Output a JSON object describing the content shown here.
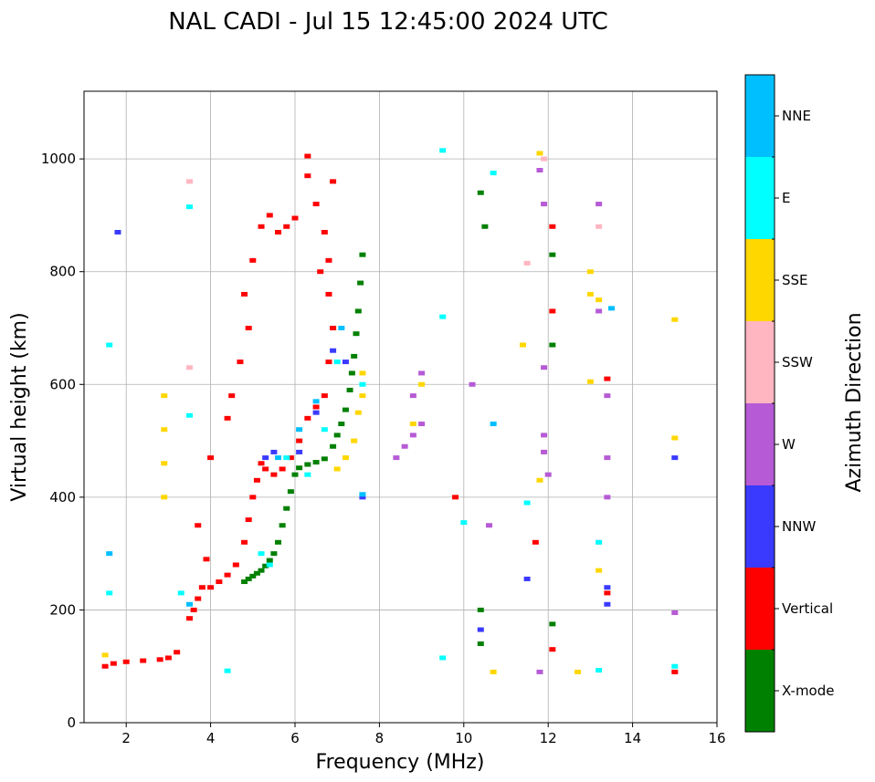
{
  "chart_data": {
    "type": "scatter",
    "title": "NAL CADI - Jul 15 12:45:00 2024 UTC",
    "xlabel": "Frequency (MHz)",
    "ylabel": "Virtual height (km)",
    "xlim": [
      1,
      16
    ],
    "ylim": [
      0,
      1120
    ],
    "xticks": [
      2,
      4,
      6,
      8,
      10,
      12,
      14,
      16
    ],
    "yticks": [
      0,
      200,
      400,
      600,
      800,
      1000
    ],
    "grid": true,
    "colorbar": {
      "title": "Azimuth Direction",
      "categories": [
        "X-mode",
        "Vertical",
        "NNW",
        "W",
        "SSW",
        "SSE",
        "E",
        "NNE"
      ],
      "colors": [
        "#008000",
        "#ff0000",
        "#3a3aff",
        "#b65ad6",
        "#ffb6c1",
        "#ffd700",
        "#00ffff",
        "#00bfff"
      ]
    },
    "series": [
      {
        "name": "X-mode",
        "points": [
          [
            4.8,
            250
          ],
          [
            4.9,
            255
          ],
          [
            5.0,
            260
          ],
          [
            5.1,
            265
          ],
          [
            5.2,
            270
          ],
          [
            5.3,
            278
          ],
          [
            5.4,
            288
          ],
          [
            5.5,
            300
          ],
          [
            5.6,
            320
          ],
          [
            5.7,
            350
          ],
          [
            5.8,
            380
          ],
          [
            5.9,
            410
          ],
          [
            6.0,
            440
          ],
          [
            6.1,
            452
          ],
          [
            6.3,
            458
          ],
          [
            6.5,
            462
          ],
          [
            6.7,
            468
          ],
          [
            6.9,
            490
          ],
          [
            7.0,
            510
          ],
          [
            7.1,
            530
          ],
          [
            7.2,
            555
          ],
          [
            7.3,
            590
          ],
          [
            7.35,
            620
          ],
          [
            7.4,
            650
          ],
          [
            7.45,
            690
          ],
          [
            7.5,
            730
          ],
          [
            7.55,
            780
          ],
          [
            7.6,
            830
          ],
          [
            10.4,
            200
          ],
          [
            10.4,
            140
          ],
          [
            10.5,
            880
          ],
          [
            12.1,
            175
          ],
          [
            12.1,
            670
          ],
          [
            12.1,
            830
          ],
          [
            10.4,
            940
          ]
        ]
      },
      {
        "name": "Vertical",
        "points": [
          [
            1.5,
            100
          ],
          [
            1.7,
            105
          ],
          [
            2.0,
            108
          ],
          [
            2.4,
            110
          ],
          [
            2.8,
            112
          ],
          [
            3.0,
            115
          ],
          [
            3.2,
            125
          ],
          [
            3.5,
            185
          ],
          [
            3.6,
            200
          ],
          [
            3.7,
            220
          ],
          [
            3.8,
            240
          ],
          [
            3.9,
            290
          ],
          [
            4.0,
            240
          ],
          [
            4.2,
            250
          ],
          [
            4.4,
            262
          ],
          [
            4.6,
            280
          ],
          [
            4.8,
            320
          ],
          [
            4.9,
            360
          ],
          [
            5.0,
            400
          ],
          [
            5.1,
            430
          ],
          [
            5.2,
            460
          ],
          [
            5.3,
            450
          ],
          [
            5.5,
            440
          ],
          [
            5.7,
            450
          ],
          [
            5.9,
            470
          ],
          [
            6.1,
            500
          ],
          [
            6.3,
            540
          ],
          [
            6.5,
            560
          ],
          [
            6.7,
            580
          ],
          [
            6.8,
            640
          ],
          [
            6.9,
            700
          ],
          [
            5.0,
            820
          ],
          [
            5.2,
            880
          ],
          [
            5.4,
            900
          ],
          [
            5.6,
            870
          ],
          [
            5.8,
            880
          ],
          [
            6.0,
            895
          ],
          [
            6.3,
            1005
          ],
          [
            6.3,
            970
          ],
          [
            6.5,
            920
          ],
          [
            6.7,
            870
          ],
          [
            6.9,
            960
          ],
          [
            4.9,
            700
          ],
          [
            4.8,
            760
          ],
          [
            4.7,
            640
          ],
          [
            4.5,
            580
          ],
          [
            4.4,
            540
          ],
          [
            3.7,
            350
          ],
          [
            4.0,
            470
          ],
          [
            6.8,
            760
          ],
          [
            6.8,
            820
          ],
          [
            6.6,
            800
          ],
          [
            15.0,
            90
          ],
          [
            13.4,
            610
          ],
          [
            13.4,
            230
          ],
          [
            12.1,
            130
          ],
          [
            11.7,
            320
          ],
          [
            12.1,
            730
          ],
          [
            12.1,
            880
          ],
          [
            9.8,
            400
          ]
        ]
      },
      {
        "name": "NNW",
        "points": [
          [
            5.3,
            470
          ],
          [
            5.5,
            480
          ],
          [
            6.1,
            480
          ],
          [
            6.5,
            550
          ],
          [
            6.9,
            660
          ],
          [
            7.2,
            640
          ],
          [
            13.4,
            240
          ],
          [
            13.4,
            210
          ],
          [
            15.0,
            470
          ],
          [
            11.5,
            255
          ],
          [
            10.4,
            165
          ],
          [
            1.8,
            870
          ],
          [
            7.6,
            400
          ]
        ]
      },
      {
        "name": "W",
        "points": [
          [
            8.4,
            470
          ],
          [
            8.6,
            490
          ],
          [
            8.8,
            510
          ],
          [
            9.0,
            530
          ],
          [
            8.8,
            580
          ],
          [
            9.0,
            620
          ],
          [
            11.8,
            90
          ],
          [
            11.9,
            480
          ],
          [
            11.9,
            510
          ],
          [
            11.9,
            630
          ],
          [
            11.9,
            920
          ],
          [
            11.8,
            980
          ],
          [
            13.4,
            400
          ],
          [
            13.4,
            470
          ],
          [
            13.2,
            730
          ],
          [
            13.2,
            920
          ],
          [
            15.0,
            195
          ],
          [
            10.6,
            350
          ],
          [
            12.0,
            440
          ],
          [
            13.4,
            580
          ],
          [
            10.2,
            600
          ]
        ]
      },
      {
        "name": "SSW",
        "points": [
          [
            3.5,
            960
          ],
          [
            3.5,
            630
          ],
          [
            11.9,
            1000
          ],
          [
            13.2,
            880
          ],
          [
            13.2,
            320
          ],
          [
            11.5,
            815
          ]
        ]
      },
      {
        "name": "SSE",
        "points": [
          [
            1.5,
            120
          ],
          [
            2.9,
            580
          ],
          [
            2.9,
            520
          ],
          [
            2.9,
            460
          ],
          [
            2.9,
            400
          ],
          [
            7.0,
            450
          ],
          [
            7.2,
            470
          ],
          [
            7.4,
            500
          ],
          [
            7.5,
            550
          ],
          [
            7.6,
            580
          ],
          [
            7.6,
            620
          ],
          [
            8.8,
            530
          ],
          [
            9.0,
            600
          ],
          [
            13.0,
            800
          ],
          [
            13.0,
            760
          ],
          [
            13.0,
            605
          ],
          [
            13.2,
            750
          ],
          [
            12.7,
            90
          ],
          [
            13.2,
            270
          ],
          [
            15.0,
            715
          ],
          [
            15.0,
            505
          ],
          [
            11.8,
            430
          ],
          [
            10.7,
            90
          ],
          [
            11.8,
            1010
          ],
          [
            11.4,
            670
          ]
        ]
      },
      {
        "name": "E",
        "points": [
          [
            1.6,
            230
          ],
          [
            3.3,
            230
          ],
          [
            3.5,
            545
          ],
          [
            3.5,
            915
          ],
          [
            5.2,
            300
          ],
          [
            5.4,
            280
          ],
          [
            5.8,
            470
          ],
          [
            6.3,
            440
          ],
          [
            6.7,
            520
          ],
          [
            7.0,
            640
          ],
          [
            7.6,
            600
          ],
          [
            15.0,
            100
          ],
          [
            13.2,
            93
          ],
          [
            13.2,
            320
          ],
          [
            11.5,
            390
          ],
          [
            9.5,
            720
          ],
          [
            9.5,
            1015
          ],
          [
            9.5,
            115
          ],
          [
            1.6,
            670
          ],
          [
            10.7,
            975
          ],
          [
            10.0,
            355
          ],
          [
            4.4,
            92
          ]
        ]
      },
      {
        "name": "NNE",
        "points": [
          [
            1.6,
            300
          ],
          [
            3.5,
            210
          ],
          [
            5.6,
            470
          ],
          [
            6.1,
            520
          ],
          [
            6.5,
            570
          ],
          [
            7.1,
            700
          ],
          [
            13.5,
            735
          ],
          [
            7.6,
            405
          ],
          [
            10.7,
            530
          ]
        ]
      }
    ]
  }
}
